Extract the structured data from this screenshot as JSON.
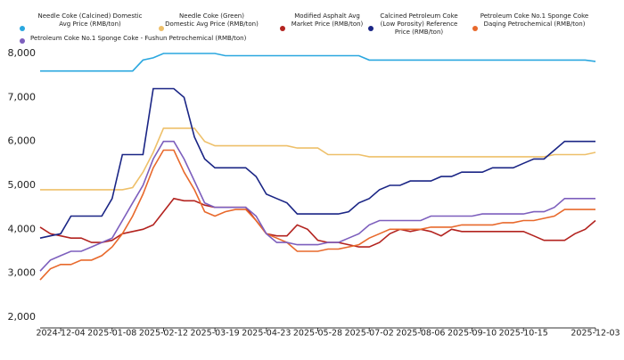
{
  "chart_data": {
    "type": "line",
    "x": [
      "2024-11-20",
      "2024-11-27",
      "2024-12-04",
      "2024-12-11",
      "2024-12-18",
      "2024-12-25",
      "2025-01-01",
      "2025-01-08",
      "2025-01-15",
      "2025-01-22",
      "2025-01-29",
      "2025-02-05",
      "2025-02-12",
      "2025-02-19",
      "2025-02-26",
      "2025-03-05",
      "2025-03-12",
      "2025-03-19",
      "2025-03-26",
      "2025-04-02",
      "2025-04-09",
      "2025-04-16",
      "2025-04-23",
      "2025-04-30",
      "2025-05-07",
      "2025-05-14",
      "2025-05-21",
      "2025-05-28",
      "2025-06-04",
      "2025-06-11",
      "2025-06-18",
      "2025-06-25",
      "2025-07-02",
      "2025-07-09",
      "2025-07-16",
      "2025-07-23",
      "2025-07-30",
      "2025-08-06",
      "2025-08-13",
      "2025-08-20",
      "2025-08-27",
      "2025-09-03",
      "2025-09-10",
      "2025-09-17",
      "2025-09-24",
      "2025-10-01",
      "2025-10-08",
      "2025-10-15",
      "2025-10-22",
      "2025-10-29",
      "2025-11-05",
      "2025-11-12",
      "2025-11-19",
      "2025-11-26",
      "2025-12-03"
    ],
    "series": [
      {
        "name": "Needle Coke (Calcined) Domestic Avg Price (RMB/ton)",
        "color": "#2aa7df",
        "values": [
          7600,
          7600,
          7600,
          7600,
          7600,
          7600,
          7600,
          7600,
          7600,
          7600,
          7850,
          7900,
          8000,
          8000,
          8000,
          8000,
          8000,
          8000,
          7950,
          7950,
          7950,
          7950,
          7950,
          7950,
          7950,
          7950,
          7950,
          7950,
          7950,
          7950,
          7950,
          7950,
          7850,
          7850,
          7850,
          7850,
          7850,
          7850,
          7850,
          7850,
          7850,
          7850,
          7850,
          7850,
          7850,
          7850,
          7850,
          7850,
          7850,
          7850,
          7850,
          7850,
          7850,
          7850,
          7820
        ]
      },
      {
        "name": "Needle Coke (Green) Domestic Avg Price (RMB/ton)",
        "color": "#eec06a",
        "values": [
          4900,
          4900,
          4900,
          4900,
          4900,
          4900,
          4900,
          4900,
          4900,
          4950,
          5300,
          5750,
          6300,
          6300,
          6300,
          6300,
          6000,
          5900,
          5900,
          5900,
          5900,
          5900,
          5900,
          5900,
          5900,
          5850,
          5850,
          5850,
          5700,
          5700,
          5700,
          5700,
          5650,
          5650,
          5650,
          5650,
          5650,
          5650,
          5650,
          5650,
          5650,
          5650,
          5650,
          5650,
          5650,
          5650,
          5650,
          5650,
          5650,
          5650,
          5700,
          5700,
          5700,
          5700,
          5750
        ]
      },
      {
        "name": "Modified Asphalt Avg Market Price (RMB/ton)",
        "color": "#b3231f",
        "values": [
          4050,
          3900,
          3850,
          3800,
          3800,
          3700,
          3700,
          3750,
          3900,
          3950,
          4000,
          4100,
          4400,
          4700,
          4650,
          4650,
          4550,
          4500,
          4500,
          4500,
          4500,
          4200,
          3900,
          3850,
          3850,
          4100,
          4000,
          3750,
          3700,
          3700,
          3650,
          3600,
          3600,
          3700,
          3900,
          4000,
          3950,
          4000,
          3950,
          3850,
          4000,
          3950,
          3950,
          3950,
          3950,
          3950,
          3950,
          3950,
          3850,
          3750,
          3750,
          3750,
          3900,
          4000,
          4200
        ]
      },
      {
        "name": "Calcined Petroleum Coke (Low Porosity) Reference Price (RMB/ton)",
        "color": "#1a2585",
        "values": [
          3800,
          3850,
          3900,
          4300,
          4300,
          4300,
          4300,
          4700,
          5700,
          5700,
          5700,
          7200,
          7200,
          7200,
          7000,
          6100,
          5600,
          5400,
          5400,
          5400,
          5400,
          5200,
          4800,
          4700,
          4600,
          4350,
          4350,
          4350,
          4350,
          4350,
          4400,
          4600,
          4700,
          4900,
          5000,
          5000,
          5100,
          5100,
          5100,
          5200,
          5200,
          5300,
          5300,
          5300,
          5400,
          5400,
          5400,
          5500,
          5600,
          5600,
          5800,
          6000,
          6000,
          6000,
          6000
        ]
      },
      {
        "name": "Petroleum Coke No.1 Sponge Coke Daqing Petrochemical (RMB/ton)",
        "color": "#e8692c",
        "values": [
          2850,
          3100,
          3200,
          3200,
          3300,
          3300,
          3400,
          3600,
          3900,
          4300,
          4800,
          5400,
          5800,
          5800,
          5300,
          4900,
          4400,
          4300,
          4400,
          4450,
          4450,
          4200,
          3900,
          3800,
          3700,
          3500,
          3500,
          3500,
          3550,
          3550,
          3600,
          3650,
          3800,
          3900,
          4000,
          4000,
          4000,
          4000,
          4050,
          4050,
          4050,
          4100,
          4100,
          4100,
          4100,
          4150,
          4150,
          4200,
          4200,
          4250,
          4300,
          4450,
          4450,
          4450,
          4450
        ]
      },
      {
        "name": "Petroleum Coke No.1 Sponge Coke - Fushun Petrochemical (RMB/ton)",
        "color": "#7d5fbd",
        "values": [
          3050,
          3300,
          3400,
          3500,
          3500,
          3600,
          3700,
          3800,
          4200,
          4600,
          5000,
          5600,
          6000,
          6000,
          5600,
          5100,
          4600,
          4500,
          4500,
          4500,
          4500,
          4300,
          3900,
          3700,
          3700,
          3650,
          3650,
          3650,
          3700,
          3700,
          3800,
          3900,
          4100,
          4200,
          4200,
          4200,
          4200,
          4200,
          4300,
          4300,
          4300,
          4300,
          4300,
          4350,
          4350,
          4350,
          4350,
          4350,
          4400,
          4400,
          4500,
          4700,
          4700,
          4700,
          4700
        ]
      }
    ],
    "xticks": [
      "2024-12-04",
      "2025-01-08",
      "2025-02-12",
      "2025-03-19",
      "2025-04-23",
      "2025-05-28",
      "2025-07-02",
      "2025-08-06",
      "2025-09-10",
      "2025-10-15",
      "2025-12-03"
    ],
    "ylim": [
      2000,
      8000
    ],
    "yticks": [
      {
        "value": 2000,
        "label": "2,000"
      },
      {
        "value": 3000,
        "label": "3,000"
      },
      {
        "value": 4000,
        "label": "4,000"
      },
      {
        "value": 5000,
        "label": "5,000"
      },
      {
        "value": 6000,
        "label": "6,000"
      },
      {
        "value": 7000,
        "label": "7,000"
      },
      {
        "value": 8000,
        "label": "8,000"
      }
    ],
    "grid": false,
    "legend": "top"
  }
}
